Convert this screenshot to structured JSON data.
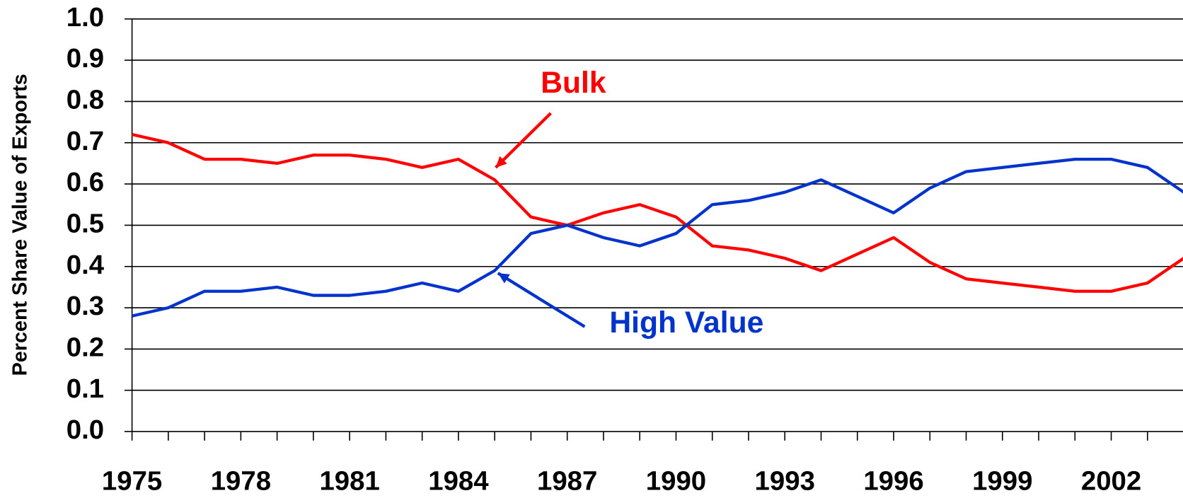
{
  "chart_data": {
    "type": "line",
    "y_label": "Percent Share Value of Exports",
    "x": [
      1975,
      1976,
      1977,
      1978,
      1979,
      1980,
      1981,
      1982,
      1983,
      1984,
      1985,
      1986,
      1987,
      1988,
      1989,
      1990,
      1991,
      1992,
      1993,
      1994,
      1995,
      1996,
      1997,
      1998,
      1999,
      2000,
      2001,
      2002,
      2003,
      2004
    ],
    "series": [
      {
        "name": "Bulk",
        "color": "#ff0000",
        "values": [
          0.72,
          0.7,
          0.66,
          0.66,
          0.65,
          0.67,
          0.67,
          0.66,
          0.64,
          0.66,
          0.61,
          0.52,
          0.5,
          0.53,
          0.55,
          0.52,
          0.45,
          0.44,
          0.42,
          0.39,
          0.43,
          0.47,
          0.41,
          0.37,
          0.36,
          0.35,
          0.34,
          0.34,
          0.36,
          0.42
        ]
      },
      {
        "name": "High Value",
        "color": "#0033cc",
        "values": [
          0.28,
          0.3,
          0.34,
          0.34,
          0.35,
          0.33,
          0.33,
          0.34,
          0.36,
          0.34,
          0.39,
          0.48,
          0.5,
          0.47,
          0.45,
          0.48,
          0.55,
          0.56,
          0.58,
          0.61,
          0.57,
          0.53,
          0.59,
          0.63,
          0.64,
          0.65,
          0.66,
          0.66,
          0.64,
          0.58
        ]
      }
    ],
    "xlim": [
      1975,
      2004
    ],
    "xticks": [
      1975,
      1978,
      1981,
      1984,
      1987,
      1990,
      1993,
      1996,
      1999,
      2002
    ],
    "ylim": [
      0,
      1
    ],
    "yticks": [
      {
        "value": 0,
        "label": "0.0"
      },
      0.1,
      0.2,
      0.3,
      0.4,
      0.5,
      0.6,
      0.7,
      0.8,
      0.9,
      {
        "value": 1,
        "label": "1.0"
      }
    ],
    "grid": true
  }
}
